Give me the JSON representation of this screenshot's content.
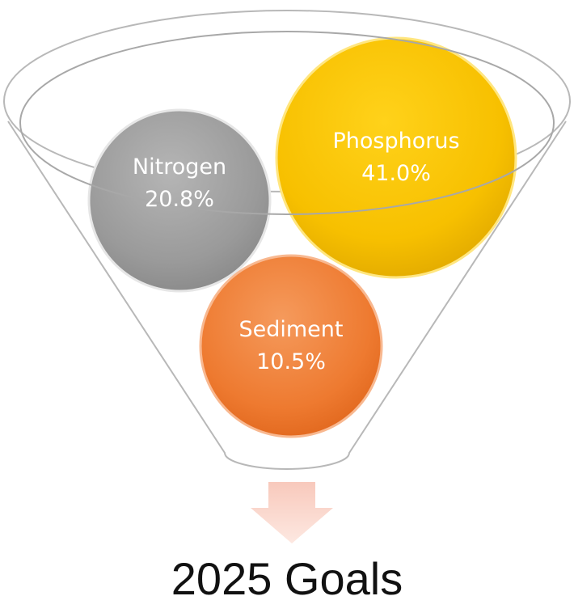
{
  "nodes": [
    {
      "label": "Nitrogen",
      "value": "20.8%"
    },
    {
      "label": "Phosphorus",
      "value": "41.0%"
    },
    {
      "label": "Sediment",
      "value": "10.5%"
    }
  ],
  "title": "2025 Goals"
}
